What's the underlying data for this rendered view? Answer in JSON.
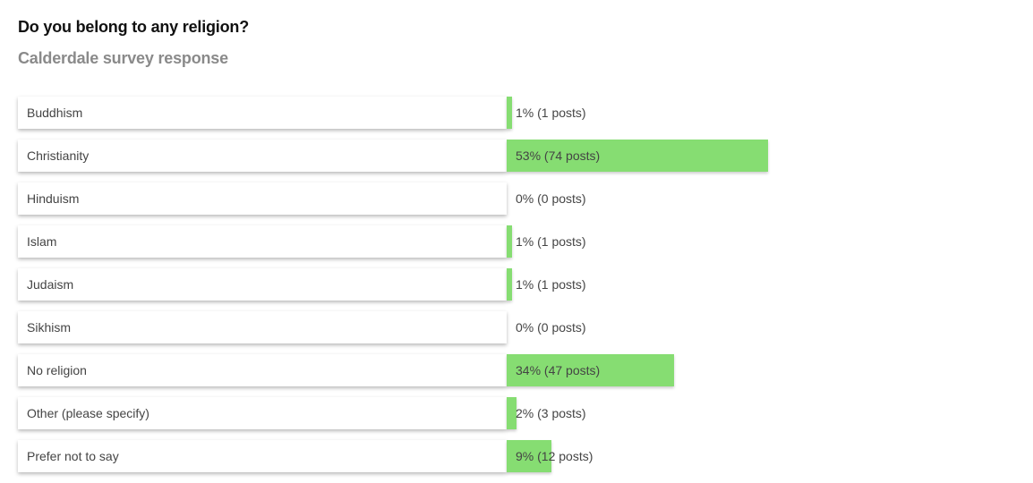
{
  "header": {
    "question": "Do you belong to any religion?",
    "subtitle": "Calderdale survey response"
  },
  "colors": {
    "bar": "#86dd72",
    "text": "#444444",
    "subtitle": "#8a8a8a"
  },
  "chart_data": {
    "type": "bar",
    "orientation": "horizontal",
    "title": "Do you belong to any religion?",
    "subtitle": "Calderdale survey response",
    "categories": [
      "Buddhism",
      "Christianity",
      "Hinduism",
      "Islam",
      "Judaism",
      "Sikhism",
      "No religion",
      "Other (please specify)",
      "Prefer not to say"
    ],
    "values": [
      1,
      53,
      0,
      1,
      1,
      0,
      34,
      2,
      9
    ],
    "posts": [
      1,
      74,
      0,
      1,
      1,
      0,
      47,
      3,
      12
    ],
    "value_labels": [
      "1% (1 posts)",
      "53% (74 posts)",
      "0% (0 posts)",
      "1% (1 posts)",
      "1% (1 posts)",
      "0% (0 posts)",
      "34% (47 posts)",
      "2% (3 posts)",
      "9% (12 posts)"
    ],
    "unit": "%",
    "xlim": [
      0,
      100
    ],
    "grid": false
  }
}
